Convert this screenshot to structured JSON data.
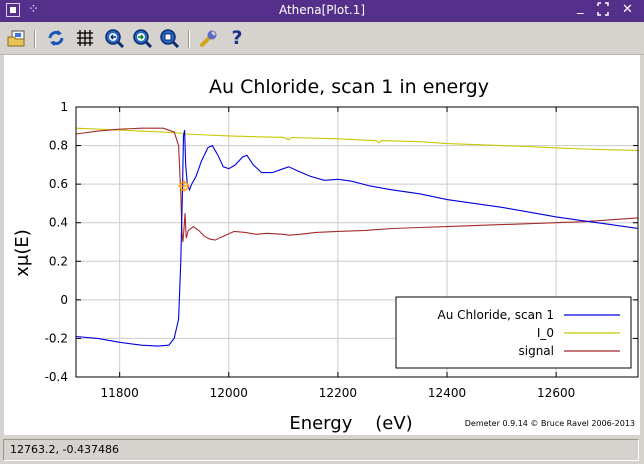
{
  "window": {
    "title": "Athena[Plot.1]"
  },
  "titlebar": {
    "minimize_glyph": "_",
    "maximize_glyph": "⁝",
    "close_glyph": "✕"
  },
  "toolbar": {
    "icons": [
      "open-image-icon",
      "refresh-icon",
      "grid-icon",
      "zoom-in-icon",
      "zoom-out-icon",
      "zoom-fit-icon",
      "wrench-icon",
      "help-icon"
    ],
    "help_glyph": "?"
  },
  "status": {
    "coordinates": "12763.2, -0.437486"
  },
  "credit": "Demeter 0.9.14 © Bruce Ravel 2006-2013",
  "colors": {
    "title_bar": "#55308b",
    "series_1": "#0000dd",
    "series_2": "#c8c800",
    "series_3": "#a52a2a",
    "marker": "#ff9900"
  },
  "chart_data": {
    "type": "line",
    "title": "Au Chloride, scan 1 in energy",
    "xlabel": "Energy    (eV)",
    "ylabel": "xμ(E)",
    "xlim": [
      11720,
      12750
    ],
    "ylim": [
      -0.4,
      1.0
    ],
    "xticks": [
      11800,
      12000,
      12200,
      12400,
      12600
    ],
    "yticks": [
      -0.4,
      -0.2,
      0,
      0.2,
      0.4,
      0.6,
      0.8,
      1
    ],
    "ytick_labels": [
      "-0.4",
      "-0.2",
      "0",
      "0.2",
      "0.4",
      "0.6",
      "0.8",
      "1"
    ],
    "grid": true,
    "legend_position": "bottom-right",
    "marker_point": {
      "x": 11918,
      "y": 0.59
    },
    "series": [
      {
        "name": "Au Chloride, scan 1",
        "color": "#0000dd",
        "points": [
          [
            11720,
            -0.19
          ],
          [
            11760,
            -0.2
          ],
          [
            11800,
            -0.22
          ],
          [
            11840,
            -0.235
          ],
          [
            11870,
            -0.24
          ],
          [
            11890,
            -0.235
          ],
          [
            11900,
            -0.2
          ],
          [
            11908,
            -0.1
          ],
          [
            11912,
            0.2
          ],
          [
            11915,
            0.55
          ],
          [
            11917,
            0.85
          ],
          [
            11919,
            0.88
          ],
          [
            11921,
            0.7
          ],
          [
            11924,
            0.6
          ],
          [
            11928,
            0.57
          ],
          [
            11932,
            0.6
          ],
          [
            11940,
            0.64
          ],
          [
            11950,
            0.72
          ],
          [
            11962,
            0.79
          ],
          [
            11970,
            0.8
          ],
          [
            11980,
            0.75
          ],
          [
            11990,
            0.69
          ],
          [
            12000,
            0.68
          ],
          [
            12012,
            0.7
          ],
          [
            12025,
            0.74
          ],
          [
            12033,
            0.75
          ],
          [
            12045,
            0.7
          ],
          [
            12060,
            0.66
          ],
          [
            12080,
            0.66
          ],
          [
            12100,
            0.68
          ],
          [
            12110,
            0.69
          ],
          [
            12125,
            0.67
          ],
          [
            12150,
            0.64
          ],
          [
            12175,
            0.62
          ],
          [
            12200,
            0.625
          ],
          [
            12225,
            0.615
          ],
          [
            12260,
            0.59
          ],
          [
            12300,
            0.57
          ],
          [
            12350,
            0.55
          ],
          [
            12400,
            0.52
          ],
          [
            12450,
            0.5
          ],
          [
            12500,
            0.48
          ],
          [
            12550,
            0.455
          ],
          [
            12600,
            0.43
          ],
          [
            12650,
            0.41
          ],
          [
            12700,
            0.39
          ],
          [
            12750,
            0.37
          ]
        ]
      },
      {
        "name": "I_0",
        "color": "#c8c800",
        "points": [
          [
            11720,
            0.89
          ],
          [
            11800,
            0.88
          ],
          [
            11880,
            0.87
          ],
          [
            11910,
            0.865
          ],
          [
            11918,
            0.86
          ],
          [
            11960,
            0.855
          ],
          [
            12000,
            0.85
          ],
          [
            12060,
            0.845
          ],
          [
            12100,
            0.843
          ],
          [
            12110,
            0.83
          ],
          [
            12115,
            0.842
          ],
          [
            12200,
            0.835
          ],
          [
            12270,
            0.825
          ],
          [
            12275,
            0.815
          ],
          [
            12280,
            0.826
          ],
          [
            12350,
            0.82
          ],
          [
            12400,
            0.81
          ],
          [
            12450,
            0.805
          ],
          [
            12500,
            0.8
          ],
          [
            12550,
            0.795
          ],
          [
            12600,
            0.788
          ],
          [
            12650,
            0.782
          ],
          [
            12700,
            0.778
          ],
          [
            12750,
            0.775
          ]
        ]
      },
      {
        "name": "signal",
        "color": "#a52a2a",
        "points": [
          [
            11720,
            0.86
          ],
          [
            11760,
            0.875
          ],
          [
            11800,
            0.885
          ],
          [
            11840,
            0.89
          ],
          [
            11880,
            0.89
          ],
          [
            11900,
            0.87
          ],
          [
            11908,
            0.8
          ],
          [
            11912,
            0.55
          ],
          [
            11914,
            0.35
          ],
          [
            11916,
            0.3
          ],
          [
            11918,
            0.37
          ],
          [
            11920,
            0.45
          ],
          [
            11922,
            0.32
          ],
          [
            11926,
            0.36
          ],
          [
            11935,
            0.38
          ],
          [
            11945,
            0.36
          ],
          [
            11955,
            0.33
          ],
          [
            11965,
            0.315
          ],
          [
            11975,
            0.31
          ],
          [
            11990,
            0.33
          ],
          [
            12010,
            0.355
          ],
          [
            12030,
            0.35
          ],
          [
            12050,
            0.34
          ],
          [
            12070,
            0.345
          ],
          [
            12100,
            0.34
          ],
          [
            12110,
            0.335
          ],
          [
            12130,
            0.34
          ],
          [
            12160,
            0.35
          ],
          [
            12200,
            0.355
          ],
          [
            12250,
            0.36
          ],
          [
            12300,
            0.37
          ],
          [
            12350,
            0.375
          ],
          [
            12400,
            0.38
          ],
          [
            12450,
            0.385
          ],
          [
            12500,
            0.39
          ],
          [
            12550,
            0.395
          ],
          [
            12600,
            0.4
          ],
          [
            12650,
            0.405
          ],
          [
            12700,
            0.415
          ],
          [
            12750,
            0.425
          ]
        ]
      }
    ]
  }
}
